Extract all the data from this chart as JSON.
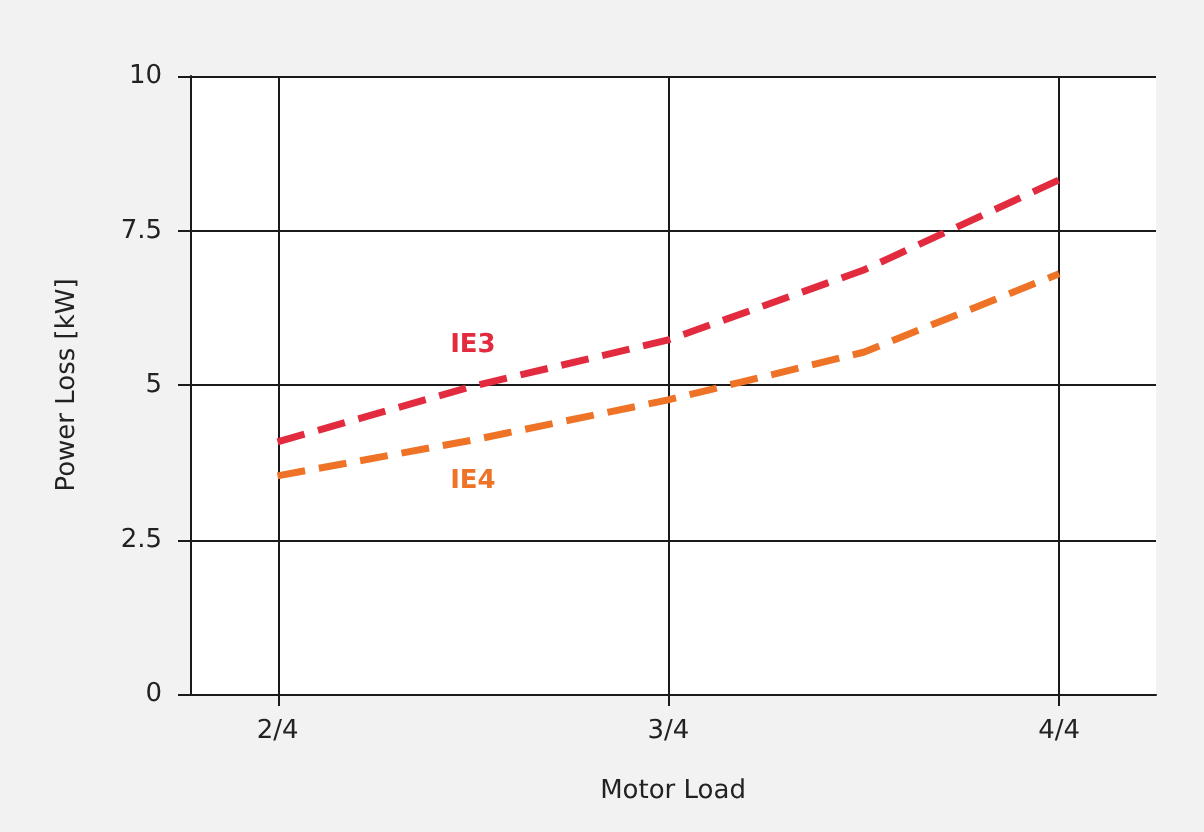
{
  "chart_data": {
    "type": "line",
    "xlabel": "Motor Load",
    "ylabel": "Power Loss [kW]",
    "x": [
      0.5,
      0.625,
      0.75,
      0.875,
      1.0
    ],
    "series": [
      {
        "name": "IE3",
        "color": "#e32b3f",
        "values": [
          4.08,
          4.98,
          5.73,
          6.86,
          8.32
        ]
      },
      {
        "name": "IE4",
        "color": "#ee7326",
        "values": [
          3.53,
          4.11,
          4.76,
          5.53,
          6.8
        ]
      }
    ],
    "xlim": [
      0.444,
      1.062
    ],
    "xticks": [
      {
        "value": 0.5,
        "label": "2/4"
      },
      {
        "value": 0.75,
        "label": "3/4"
      },
      {
        "value": 1.0,
        "label": "4/4"
      }
    ],
    "ylim": [
      0,
      10
    ],
    "yticks": [
      0,
      2.5,
      5,
      7.5,
      10
    ],
    "grid": true,
    "legend": false,
    "marker": "none",
    "line_style": "dashed"
  }
}
